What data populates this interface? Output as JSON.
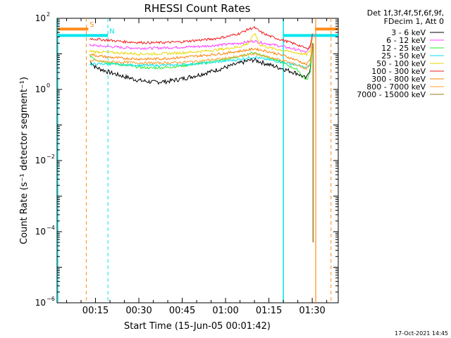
{
  "chart_data": {
    "type": "line",
    "title": "RHESSI Count Rates",
    "xlabel": "Start Time (15-Jun-05 00:01:42)",
    "ylabel": "Count Rate (s⁻¹ detector segment⁻¹)",
    "x_unit": "minutes",
    "xlim": [
      1.7,
      99.0
    ],
    "ylim": [
      1e-06,
      100
    ],
    "yscale": "log",
    "x_tick_values": [
      15,
      30,
      45,
      60,
      75,
      90
    ],
    "x_tick_labels": [
      "00:15",
      "00:30",
      "00:45",
      "01:00",
      "01:15",
      "01:30"
    ],
    "y_tick_exponents": [
      -6,
      -4,
      -2,
      0,
      2
    ],
    "y_tick_base": "10",
    "legend_placement": "top-right",
    "legend_header": [
      "Det 1f,3f,4f,5f,6f,9f,",
      "FDecim 1, Att 0"
    ],
    "footer_date": "17-Oct-2021 14:45",
    "flags": [
      {
        "label": "S",
        "color": "#ff8c1a",
        "x_start": 1.7,
        "x_end": 12.5,
        "x_line": 11.8,
        "y": 50
      },
      {
        "label": "N",
        "color": "#00e5ee",
        "x_start": 1.7,
        "x_end": 19.3,
        "x_line": 19.3,
        "y": 33
      },
      {
        "label": "",
        "color": "#00e5ee",
        "x_start": 80.0,
        "x_end": 99.0,
        "x_line": 80.0,
        "y": 33
      },
      {
        "label": "",
        "color": "#ff8c1a",
        "x_start": 91.0,
        "x_end": 99.0,
        "x_line": 96.5,
        "y": 50
      }
    ],
    "x": [
      13,
      15,
      20,
      25,
      30,
      35,
      40,
      45,
      50,
      55,
      60,
      65,
      68,
      70,
      72,
      75,
      80,
      85,
      88,
      89.3,
      90.3
    ],
    "series": [
      {
        "name": "3 - 6 keV",
        "color": "#000000",
        "values": [
          6.5,
          4.2,
          3.0,
          2.3,
          1.8,
          1.6,
          1.7,
          2.0,
          2.5,
          3.2,
          4.2,
          5.5,
          6.5,
          6.8,
          6.0,
          5.0,
          3.8,
          2.8,
          2.0,
          4.0,
          30
        ]
      },
      {
        "name": "6 - 12 keV",
        "color": "#ff3cff",
        "values": [
          18,
          17,
          16,
          15,
          14.5,
          14.5,
          15,
          15.5,
          16,
          17,
          18.5,
          20,
          22,
          23,
          21,
          19,
          16,
          13,
          11,
          15,
          40
        ]
      },
      {
        "name": "12 - 25 keV",
        "color": "#2ee82e",
        "values": [
          9,
          7,
          5.5,
          4.8,
          4.2,
          4.0,
          4.2,
          4.6,
          5.2,
          6.0,
          7.0,
          8.5,
          10,
          11,
          9.5,
          8.0,
          5.5,
          3.5,
          1.8,
          3.0,
          25
        ]
      },
      {
        "name": "25 - 50 keV",
        "color": "#00e5ee",
        "values": [
          5,
          5.2,
          5.2,
          5.0,
          4.8,
          4.7,
          4.8,
          5.0,
          5.3,
          5.7,
          6.3,
          7.0,
          7.8,
          8.2,
          7.5,
          6.8,
          5.8,
          4.8,
          4.0,
          5.0,
          30
        ]
      },
      {
        "name": "50 - 100 keV",
        "color": "#e6d800",
        "values": [
          12,
          11.5,
          11,
          10.5,
          10,
          10,
          10.3,
          10.8,
          11.5,
          12.5,
          14,
          16,
          20,
          38,
          18,
          15,
          12.5,
          10.5,
          9.5,
          12,
          35
        ]
      },
      {
        "name": "100 - 300 keV",
        "color": "#ee1c1c",
        "values": [
          27,
          26,
          24,
          22,
          21,
          20.5,
          21,
          22,
          24,
          26,
          30,
          38,
          50,
          55,
          42,
          32,
          24,
          18,
          14,
          17,
          45
        ]
      },
      {
        "name": "300 - 800 keV",
        "color": "#ff8000",
        "values": [
          10,
          9,
          8,
          7.5,
          7.2,
          7.2,
          7.5,
          8,
          8.7,
          9.5,
          10.5,
          12,
          13,
          14,
          13,
          11.5,
          9,
          6.5,
          5.0,
          7.0,
          25
        ]
      },
      {
        "name": "800 - 7000 keV",
        "color": "#ff9d2e",
        "values": [
          6.5,
          6.3,
          6,
          5.8,
          5.6,
          5.5,
          5.6,
          5.8,
          6.2,
          6.8,
          7.5,
          8.5,
          9.5,
          10,
          9.2,
          8.2,
          6.5,
          4.8,
          3.8,
          5.5,
          20
        ]
      },
      {
        "name": "7000 - 15000 keV",
        "color": "#a07820",
        "values": [
          null,
          null,
          null,
          null,
          null,
          null,
          null,
          null,
          null,
          null,
          null,
          null,
          null,
          null,
          null,
          null,
          null,
          null,
          null,
          null,
          20
        ]
      }
    ]
  }
}
